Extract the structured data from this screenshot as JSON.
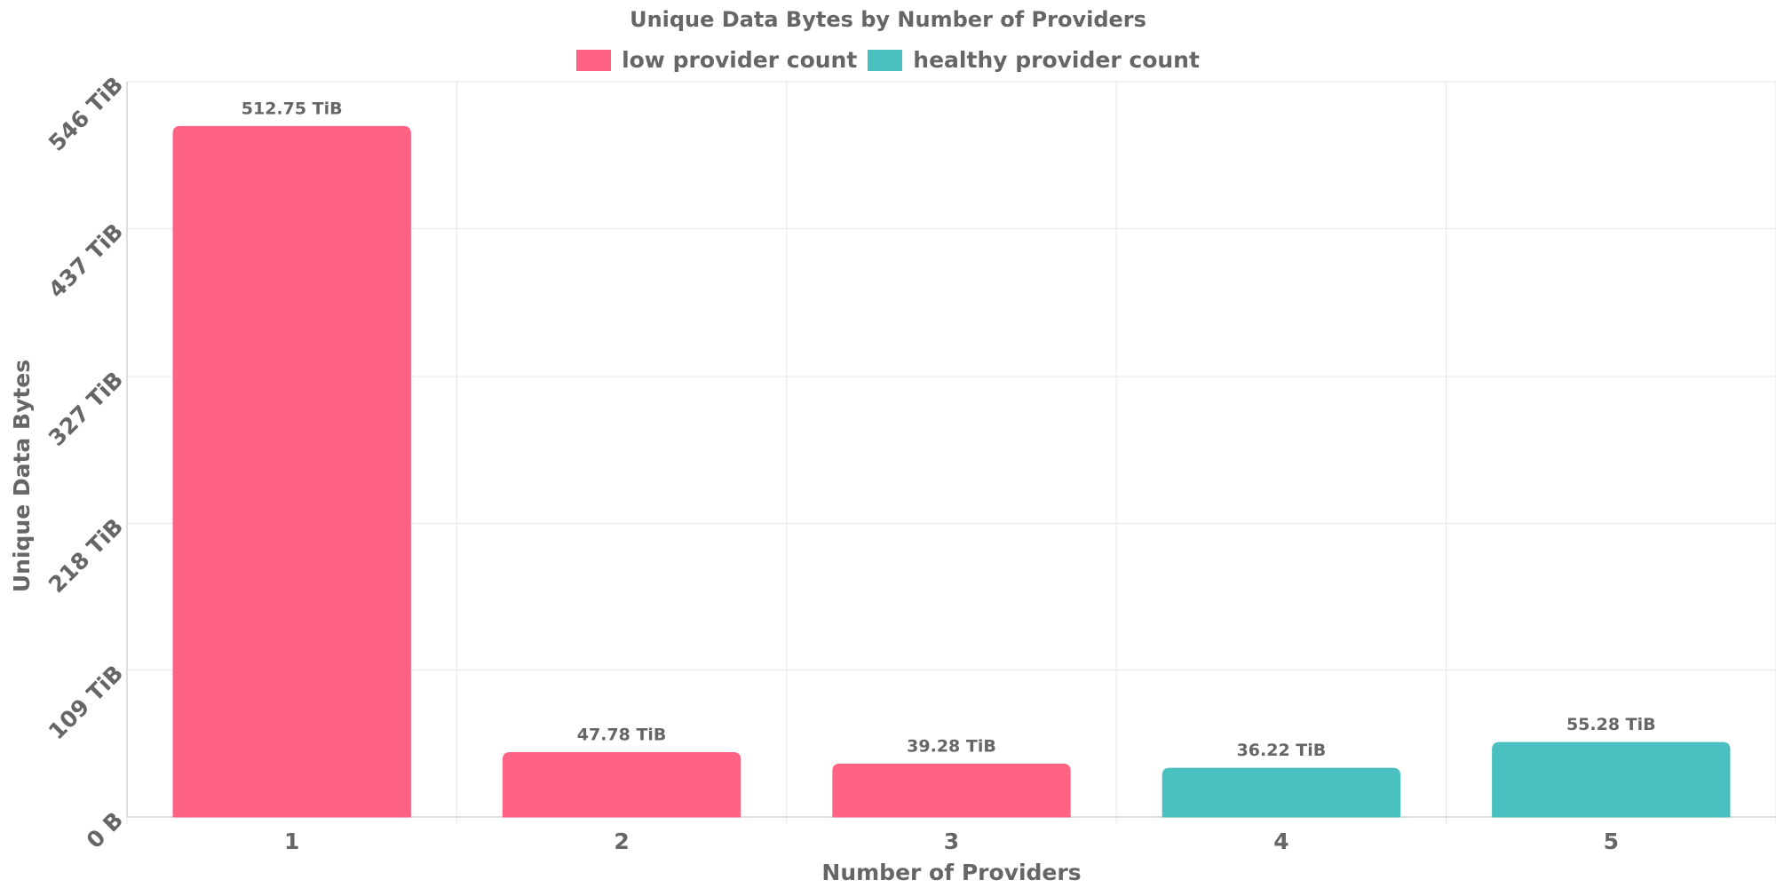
{
  "chart_data": {
    "type": "bar",
    "title": "Unique Data Bytes by Number of Providers",
    "xlabel": "Number of Providers",
    "ylabel": "Unique Data Bytes",
    "categories": [
      "1",
      "2",
      "3",
      "4",
      "5"
    ],
    "values": [
      512.75,
      47.78,
      39.28,
      36.22,
      55.28
    ],
    "value_labels": [
      "512.75 TiB",
      "47.78 TiB",
      "39.28 TiB",
      "36.22 TiB",
      "55.28 TiB"
    ],
    "value_unit": "TiB",
    "bar_series": [
      "low provider count",
      "low provider count",
      "low provider count",
      "healthy provider count",
      "healthy provider count"
    ],
    "ylim": [
      0,
      546
    ],
    "yticks": [
      0,
      109,
      218,
      327,
      437,
      546
    ],
    "ytick_labels": [
      "0 B",
      "109 TiB",
      "218 TiB",
      "327 TiB",
      "437 TiB",
      "546 TiB"
    ],
    "grid": true,
    "legend_position": "top-center",
    "legend": [
      {
        "name": "low provider count",
        "color": "#ff6384"
      },
      {
        "name": "healthy provider count",
        "color": "#4bc0c0"
      }
    ]
  }
}
